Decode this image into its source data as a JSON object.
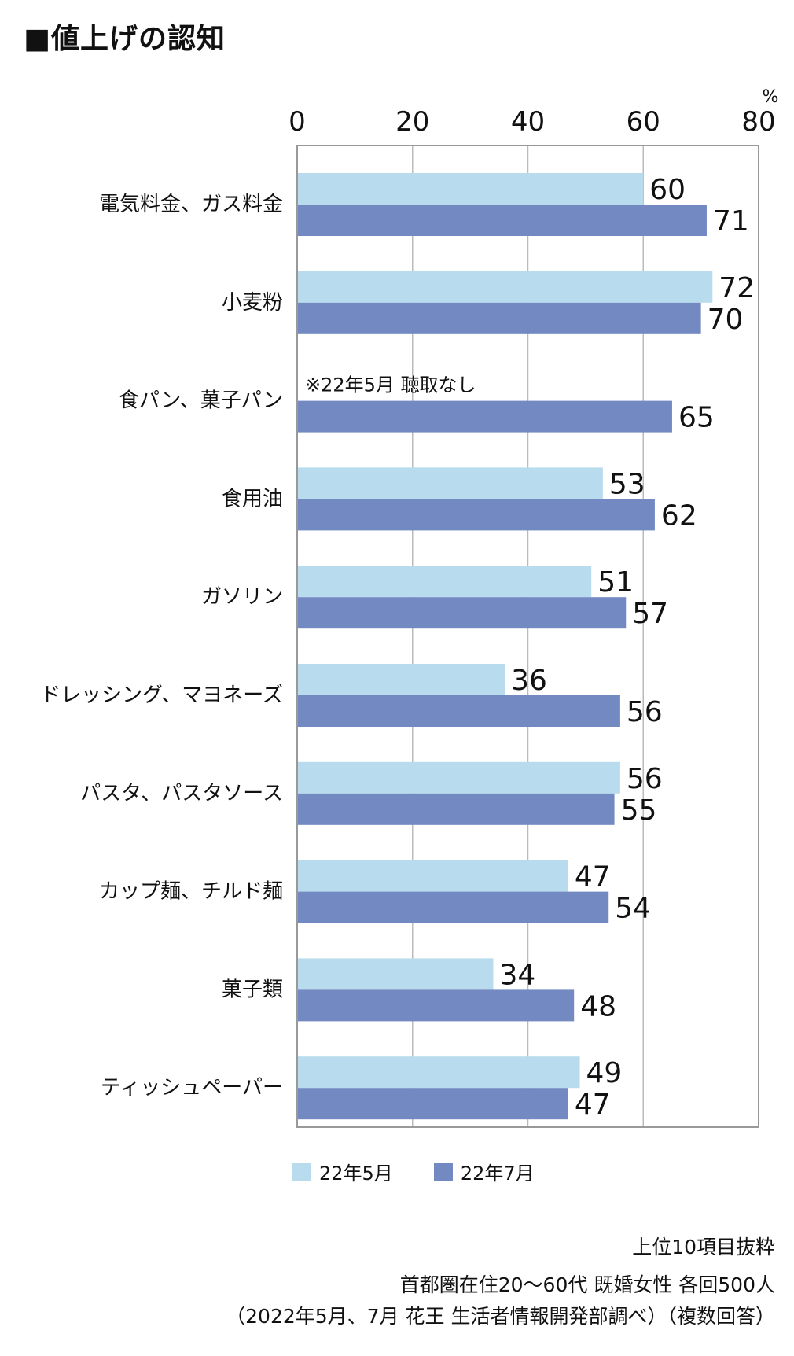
{
  "title": "■値上げの認知",
  "chart_data": {
    "type": "bar",
    "orientation": "horizontal",
    "categories": [
      "電気料金、ガス料金",
      "小麦粉",
      "食パン、菓子パン",
      "食用油",
      "ガソリン",
      "ドレッシング、マヨネーズ",
      "パスタ、パスタソース",
      "カップ麺、チルド麺",
      "菓子類",
      "ティッシュペーパー"
    ],
    "series": [
      {
        "name": "22年5月",
        "color": "#b8dced",
        "values": [
          60,
          72,
          null,
          53,
          51,
          36,
          56,
          47,
          34,
          49
        ]
      },
      {
        "name": "22年7月",
        "color": "#7389c1",
        "values": [
          71,
          70,
          65,
          62,
          57,
          56,
          55,
          54,
          48,
          47
        ]
      }
    ],
    "xlim": [
      0,
      80
    ],
    "xticks": [
      0,
      20,
      40,
      60,
      80
    ],
    "unit": "%",
    "grid": true,
    "legend_position": "bottom",
    "annotation": "※22年5月 聴取なし"
  },
  "footnotes": [
    "上位10項目抜粋",
    "首都圏在住20～60代 既婚女性 各回500人",
    "（2022年5月、7月 花王 生活者情報開発部調べ）（複数回答）"
  ]
}
